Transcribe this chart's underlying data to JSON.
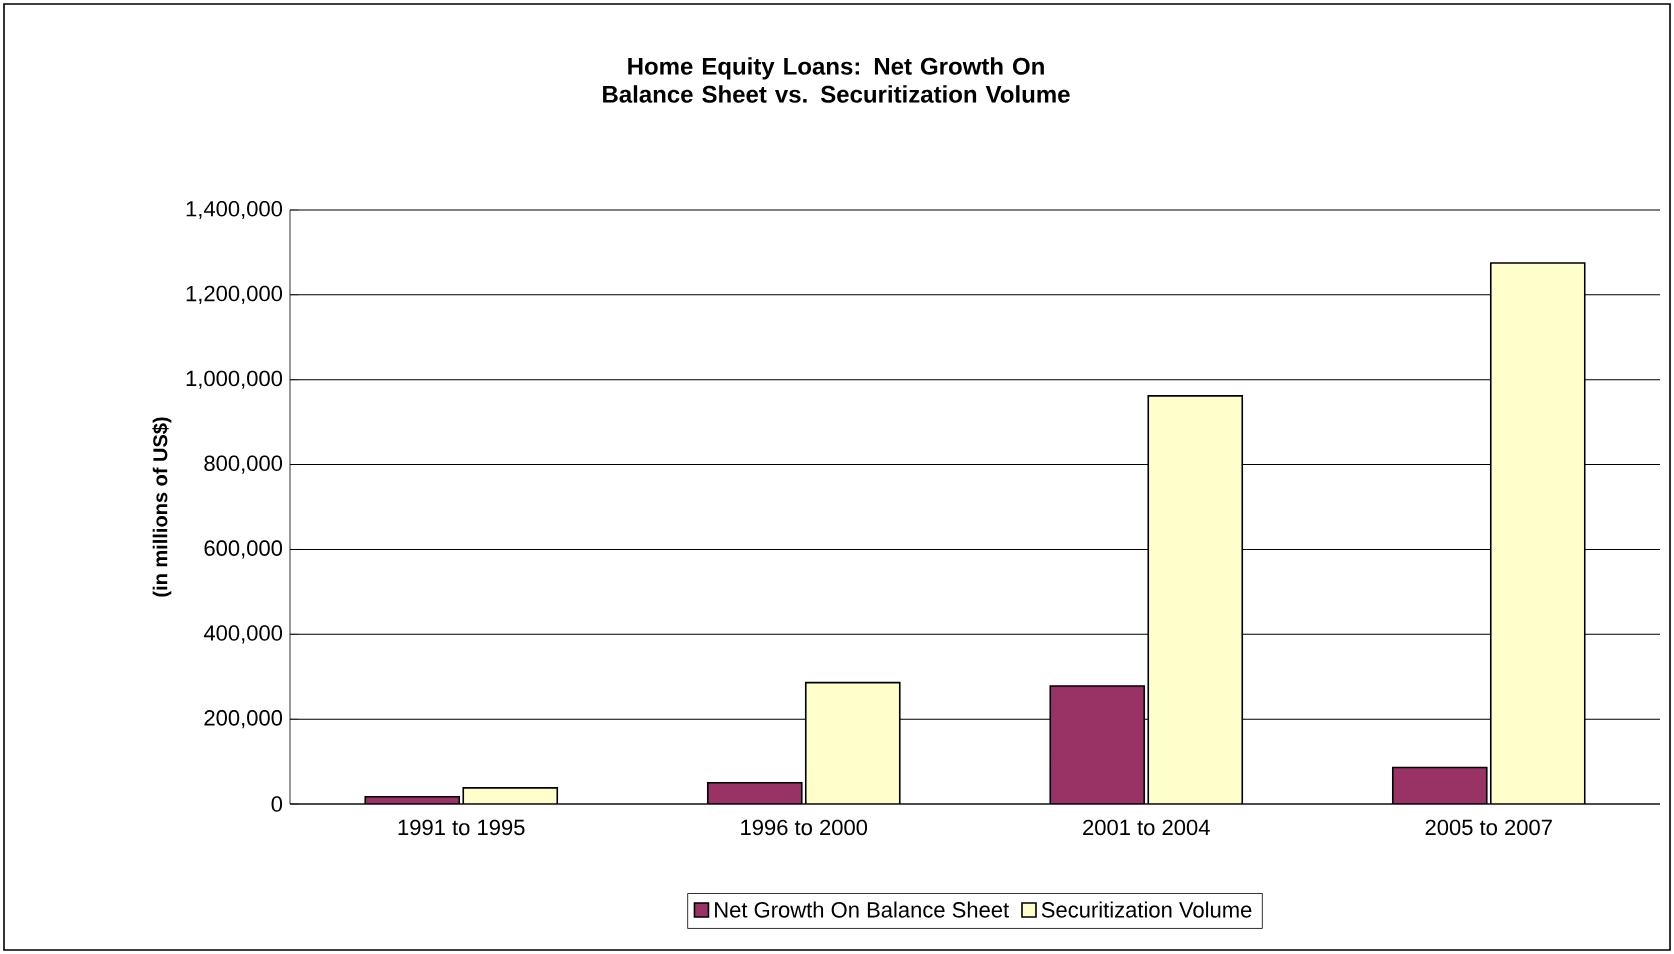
{
  "chart_data": {
    "type": "bar",
    "title": "Home Equity Loans:  Net Growth On Balance Sheet vs. Securitization Volume",
    "ylabel": "(in millions of US$)",
    "categories": [
      "1991 to 1995",
      "1996 to 2000",
      "2001 to 2004",
      "2005 to 2007"
    ],
    "series": [
      {
        "name": "Net Growth On Balance Sheet",
        "color": "#993366",
        "values": [
          17000,
          50000,
          278000,
          86000
        ]
      },
      {
        "name": "Securitization Volume",
        "color": "#ffffcc",
        "values": [
          38000,
          286000,
          962000,
          1275000
        ]
      }
    ],
    "ylim": [
      0,
      1400000
    ],
    "yticks": [
      {
        "value": 0,
        "label": "0"
      },
      {
        "value": 200000,
        "label": "200,000"
      },
      {
        "value": 400000,
        "label": "400,000"
      },
      {
        "value": 600000,
        "label": "600,000"
      },
      {
        "value": 800000,
        "label": "800,000"
      },
      {
        "value": 1000000,
        "label": "1,000,000"
      },
      {
        "value": 1200000,
        "label": "1,200,000"
      },
      {
        "value": 1400000,
        "label": "1,400,000"
      }
    ],
    "grid": "y",
    "legend": "bottom"
  }
}
